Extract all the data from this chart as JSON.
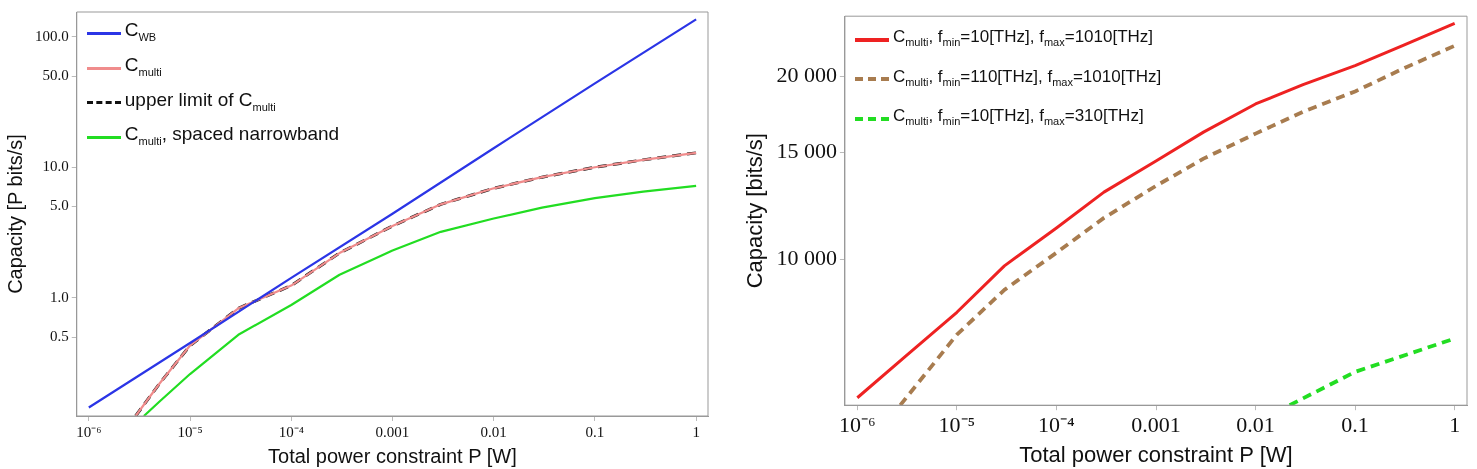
{
  "chart_data": [
    {
      "type": "line",
      "xlabel": "Total power constraint P [W]",
      "ylabel": "Capacity [P bits/s]",
      "log": "xy",
      "legend": "top left",
      "grid": false,
      "xlim": [
        7.6e-07,
        1.31
      ],
      "ylim": [
        0.124,
        155
      ],
      "xticks": [
        {
          "value": 1e-06,
          "label": "10⁻⁶"
        },
        {
          "value": 1e-05,
          "label": "10⁻⁵"
        },
        {
          "value": 0.0001,
          "label": "10⁻⁴"
        },
        {
          "value": 0.001,
          "label": "0.001"
        },
        {
          "value": 0.01,
          "label": "0.01"
        },
        {
          "value": 0.1,
          "label": "0.1"
        },
        {
          "value": 1,
          "label": "1"
        }
      ],
      "yticks": [
        {
          "value": 0.5,
          "label": "0.5"
        },
        {
          "value": 1,
          "label": "1.0"
        },
        {
          "value": 5,
          "label": "5.0"
        },
        {
          "value": 10,
          "label": "10.0"
        },
        {
          "value": 50,
          "label": "50.0"
        },
        {
          "value": 100,
          "label": "100.0"
        }
      ],
      "series": [
        {
          "name": "C$_{WB}$",
          "color": "#2b35e6",
          "x": [
            1e-06,
            1e-05,
            0.0001,
            0.001,
            0.01,
            0.1,
            1
          ],
          "values": [
            0.144,
            0.45,
            1.42,
            4.4,
            14,
            44,
            136
          ]
        },
        {
          "name": "C$_{multi}$",
          "color": "#f08c8c",
          "x": [
            2.9e-06,
            5e-06,
            1e-05,
            3e-05,
            0.0001,
            0.0003,
            0.001,
            0.003,
            0.01,
            0.03,
            0.1,
            0.3,
            1
          ],
          "values": [
            0.124,
            0.22,
            0.43,
            0.83,
            1.24,
            2.2,
            3.55,
            5.2,
            6.9,
            8.4,
            10,
            11.4,
            12.9
          ]
        },
        {
          "name": "upper limit of C$_{multi}$",
          "color": "#111111",
          "line_style": "dashed",
          "x": [
            2.9e-06,
            5e-06,
            1e-05,
            3e-05,
            0.0001,
            0.0003,
            0.001,
            0.003,
            0.01,
            0.03,
            0.1,
            0.3,
            1
          ],
          "values": [
            0.124,
            0.22,
            0.43,
            0.83,
            1.24,
            2.2,
            3.55,
            5.2,
            6.9,
            8.4,
            10,
            11.4,
            12.9
          ]
        },
        {
          "name": "C$_{multi}$, spaced narrowband",
          "color": "#22dd22",
          "x": [
            3.5e-06,
            5e-06,
            1e-05,
            3e-05,
            0.0001,
            0.0003,
            0.001,
            0.003,
            0.01,
            0.03,
            0.1,
            0.3,
            1
          ],
          "values": [
            0.124,
            0.16,
            0.26,
            0.52,
            0.88,
            1.5,
            2.3,
            3.2,
            4.05,
            4.9,
            5.8,
            6.5,
            7.2
          ]
        }
      ]
    },
    {
      "type": "line",
      "xlabel": "Total power constraint P [W]",
      "ylabel": "Capacity [bits/s]",
      "log": "xy",
      "legend": "top left",
      "grid": false,
      "xlim": [
        7.5e-07,
        1.33
      ],
      "ylim": [
        5745,
        25160
      ],
      "xticks": [
        {
          "value": 1e-06,
          "label": "10⁻⁶"
        },
        {
          "value": 1e-05,
          "label": "10⁻⁵"
        },
        {
          "value": 0.0001,
          "label": "10⁻⁴"
        },
        {
          "value": 0.001,
          "label": "0.001"
        },
        {
          "value": 0.01,
          "label": "0.01"
        },
        {
          "value": 0.1,
          "label": "0.1"
        },
        {
          "value": 1,
          "label": "1"
        }
      ],
      "yticks": [
        {
          "value": 10000,
          "label": "10 000"
        },
        {
          "value": 15000,
          "label": "15 000"
        },
        {
          "value": 20000,
          "label": "20 000"
        }
      ],
      "series": [
        {
          "name": "C$_{multi}$, f$_{min}$=10[THz], f$_{max}$=1010[THz]",
          "color": "#ee2222",
          "x": [
            1e-06,
            3e-06,
            1e-05,
            3e-05,
            0.0001,
            0.0003,
            0.001,
            0.003,
            0.01,
            0.03,
            0.1,
            0.3,
            1
          ],
          "values": [
            5910,
            6900,
            8175,
            9750,
            11260,
            12900,
            14520,
            16200,
            18030,
            19400,
            20850,
            22500,
            24480
          ]
        },
        {
          "name": "C$_{multi}$, f$_{min}$=110[THz], f$_{max}$=1010[THz]",
          "color": "#a87c4f",
          "line_style": "dashed",
          "x": [
            2.7e-06,
            1e-05,
            3e-05,
            0.0001,
            0.0003,
            0.001,
            0.003,
            0.01,
            0.03,
            0.1,
            0.3,
            1
          ],
          "values": [
            5745,
            7510,
            8900,
            10250,
            11700,
            13210,
            14650,
            16110,
            17500,
            18910,
            20600,
            22490
          ]
        },
        {
          "name": "C$_{multi}$, f$_{min}$=10[THz], f$_{max}$=310[THz]",
          "color": "#22dd22",
          "line_style": "dashed",
          "x": [
            0.022,
            0.1,
            1
          ],
          "values": [
            5745,
            6520,
            7400
          ]
        }
      ]
    }
  ]
}
